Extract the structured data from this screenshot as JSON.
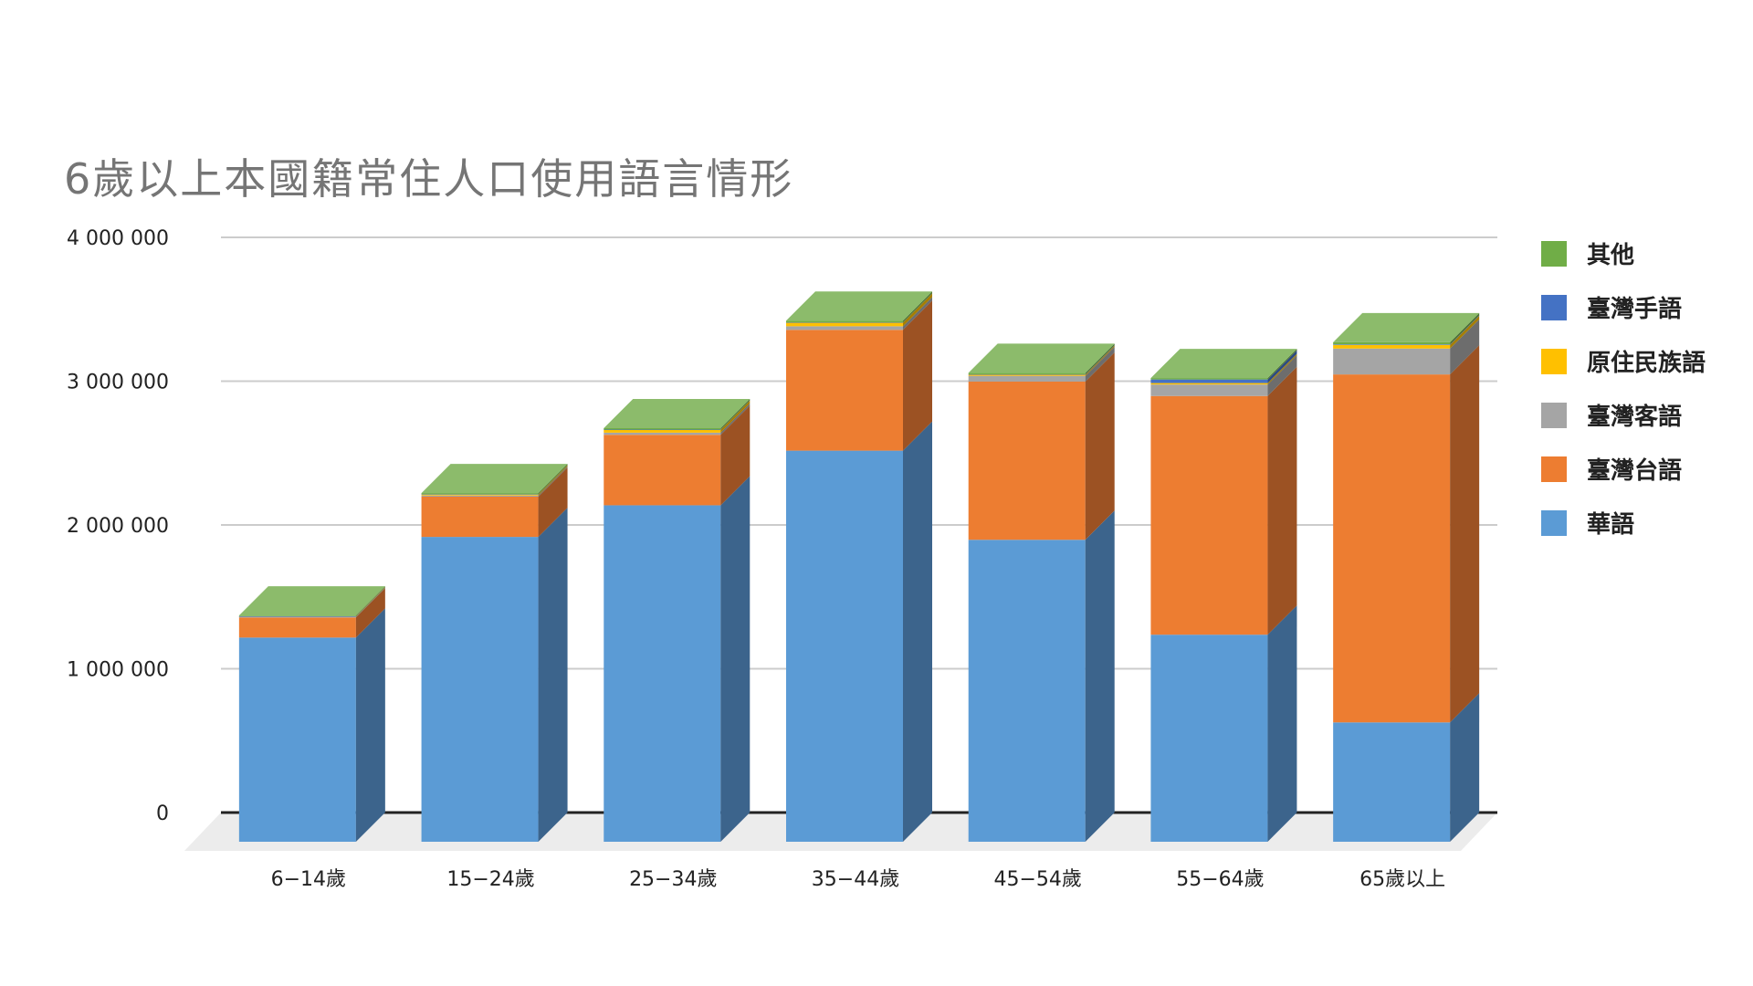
{
  "title": "6歲以上本國籍常住人口使用語言情形",
  "colors": {
    "華語": "#5b9bd5",
    "臺灣台語": "#ed7d31",
    "臺灣客語": "#a5a5a5",
    "原住民族語": "#ffc000",
    "臺灣手語": "#4472c4",
    "其他": "#70ad47"
  },
  "side_colors": {
    "華語": "#3c648c",
    "臺灣台語": "#9c5223",
    "臺灣客語": "#6d6d6d",
    "原住民族語": "#a67e00",
    "臺灣手語": "#2d4b81",
    "其他": "#4a722f"
  },
  "top_colors": {
    "其他": "#8cbb6b"
  },
  "legend": {
    "items": [
      {
        "label": "其他",
        "color": "#70ad47"
      },
      {
        "label": "臺灣手語",
        "color": "#4472c4"
      },
      {
        "label": "原住民族語",
        "color": "#ffc000"
      },
      {
        "label": "臺灣客語",
        "color": "#a5a5a5"
      },
      {
        "label": "臺灣台語",
        "color": "#ed7d31"
      },
      {
        "label": "華語",
        "color": "#5b9bd5"
      }
    ]
  },
  "y_axis": {
    "ticks": [
      "0",
      "1 000 000",
      "2 000 000",
      "3 000 000",
      "4 000 000"
    ]
  },
  "x_axis": {
    "ticks": [
      "6−14歲",
      "15−24歲",
      "25−34歲",
      "35−44歲",
      "45−54歲",
      "55−64歲",
      "65歲以上"
    ]
  },
  "chart_data": {
    "type": "bar",
    "stacked": true,
    "three_d": true,
    "title": "6歲以上本國籍常住人口使用語言情形",
    "xlabel": "",
    "ylabel": "",
    "ylim": [
      0,
      4000000
    ],
    "yticks": [
      0,
      1000000,
      2000000,
      3000000,
      4000000
    ],
    "grid": true,
    "legend_position": "right",
    "categories": [
      "6−14歲",
      "15−24歲",
      "25−34歲",
      "35−44歲",
      "45−54歲",
      "55−64歲",
      "65歲以上"
    ],
    "series": [
      {
        "name": "華語",
        "values": [
          1420000,
          2120000,
          2340000,
          2720000,
          2100000,
          1440000,
          830000
        ]
      },
      {
        "name": "臺灣台語",
        "values": [
          140000,
          280000,
          490000,
          840000,
          1100000,
          1660000,
          2420000
        ]
      },
      {
        "name": "臺灣客語",
        "values": [
          5000,
          8000,
          15000,
          25000,
          40000,
          80000,
          180000
        ]
      },
      {
        "name": "原住民族語",
        "values": [
          3000,
          8000,
          20000,
          25000,
          8000,
          10000,
          25000
        ]
      },
      {
        "name": "臺灣手語",
        "values": [
          500,
          1000,
          1500,
          2000,
          3000,
          25000,
          4000
        ]
      },
      {
        "name": "其他",
        "values": [
          5000,
          8000,
          10000,
          12000,
          10000,
          10000,
          15000
        ]
      }
    ]
  }
}
